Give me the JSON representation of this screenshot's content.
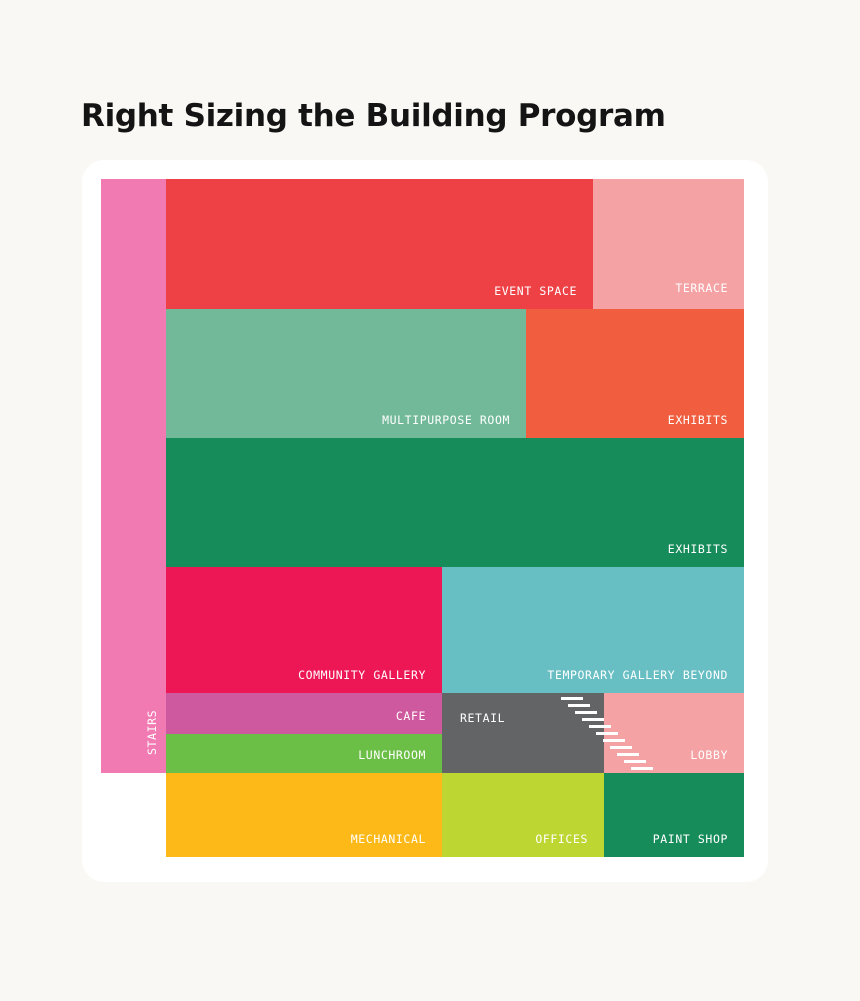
{
  "title": "Right Sizing the Building Program",
  "blocks": {
    "stairs": {
      "label": "STAIRS",
      "color": "#f17ab2"
    },
    "event_space": {
      "label": "EVENT SPACE",
      "color": "#ee4146"
    },
    "terrace": {
      "label": "TERRACE",
      "color": "#f5a2a4"
    },
    "multipurpose_room": {
      "label": "MULTIPURPOSE ROOM",
      "color": "#72b99a"
    },
    "exhibits_upper": {
      "label": "EXHIBITS",
      "color": "#f05d3f"
    },
    "exhibits_main": {
      "label": "EXHIBITS",
      "color": "#178c5b"
    },
    "community_gallery": {
      "label": "COMMUNITY GALLERY",
      "color": "#ee1756"
    },
    "temporary_gallery": {
      "label": "TEMPORARY GALLERY BEYOND",
      "color": "#67bec3"
    },
    "cafe": {
      "label": "CAFE",
      "color": "#cf599e"
    },
    "lunchroom": {
      "label": "LUNCHROOM",
      "color": "#6cbf46"
    },
    "retail": {
      "label": "RETAIL",
      "color": "#636466"
    },
    "lobby": {
      "label": "LOBBY",
      "color": "#f4a2a3"
    },
    "mechanical": {
      "label": "MECHANICAL",
      "color": "#fcb918"
    },
    "offices": {
      "label": "OFFICES",
      "color": "#bed631"
    },
    "paint_shop": {
      "label": "PAINT SHOP",
      "color": "#178c5b"
    }
  },
  "icons": {
    "stairs": "stair-steps-icon"
  }
}
